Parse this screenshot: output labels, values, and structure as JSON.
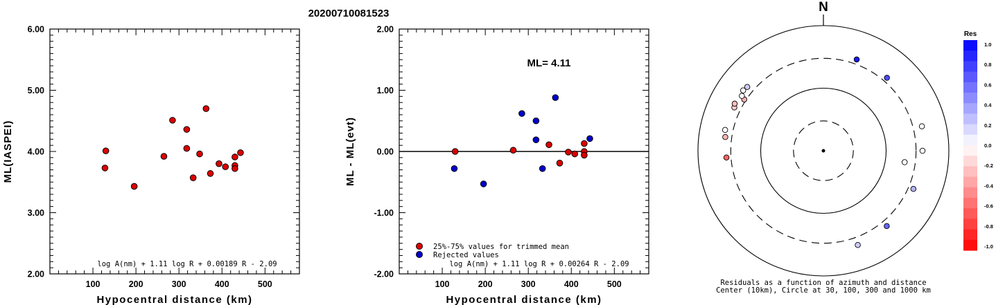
{
  "title": "20200710081523",
  "chart_data": [
    {
      "type": "scatter",
      "ylabel": "ML(IASPEI)",
      "xlabel": "Hypocentral distance (km)",
      "xlim": [
        0,
        580
      ],
      "ylim": [
        2.0,
        6.0
      ],
      "xticks": [
        100,
        200,
        300,
        400,
        500
      ],
      "yticks": [
        2.0,
        3.0,
        4.0,
        5.0,
        6.0
      ],
      "ytick_labels": [
        "2.00",
        "3.00",
        "4.00",
        "5.00",
        "6.00"
      ],
      "formula": "log A(nm) + 1.11 log R + 0.00189 R - 2.09",
      "marker_color": "#dd0000",
      "points": [
        {
          "x": 130,
          "y": 4.01
        },
        {
          "x": 128,
          "y": 3.73
        },
        {
          "x": 196,
          "y": 3.43
        },
        {
          "x": 265,
          "y": 3.92
        },
        {
          "x": 285,
          "y": 4.51
        },
        {
          "x": 318,
          "y": 4.36
        },
        {
          "x": 318,
          "y": 4.05
        },
        {
          "x": 333,
          "y": 3.57
        },
        {
          "x": 348,
          "y": 3.96
        },
        {
          "x": 363,
          "y": 4.7
        },
        {
          "x": 373,
          "y": 3.64
        },
        {
          "x": 393,
          "y": 3.8
        },
        {
          "x": 408,
          "y": 3.75
        },
        {
          "x": 430,
          "y": 3.91
        },
        {
          "x": 430,
          "y": 3.77
        },
        {
          "x": 430,
          "y": 3.72
        },
        {
          "x": 443,
          "y": 3.98
        }
      ]
    },
    {
      "type": "scatter",
      "ylabel": "ML - ML(evt)",
      "xlabel": "Hypocentral distance (km)",
      "xlim": [
        0,
        580
      ],
      "ylim": [
        -2.0,
        2.0
      ],
      "xticks": [
        100,
        200,
        300,
        400,
        500
      ],
      "yticks": [
        -2.0,
        -1.0,
        0.0,
        1.0,
        2.0
      ],
      "ytick_labels": [
        "-2.00",
        "-1.00",
        "0.00",
        "1.00",
        "2.00"
      ],
      "annotation": "ML= 4.11",
      "formula": "log A(nm) + 1.11 log R + 0.00264 R - 2.09",
      "legend": [
        {
          "label": "25%-75% values for trimmed mean",
          "color": "#dd0000"
        },
        {
          "label": "Rejected values",
          "color": "#0000cc"
        }
      ],
      "series": [
        {
          "color": "#dd0000",
          "points": [
            {
              "x": 130,
              "y": 0.0
            },
            {
              "x": 265,
              "y": 0.02
            },
            {
              "x": 348,
              "y": 0.11
            },
            {
              "x": 373,
              "y": -0.19
            },
            {
              "x": 393,
              "y": -0.01
            },
            {
              "x": 408,
              "y": -0.04
            },
            {
              "x": 430,
              "y": 0.13
            },
            {
              "x": 430,
              "y": 0.0
            },
            {
              "x": 430,
              "y": -0.06
            }
          ]
        },
        {
          "color": "#0000cc",
          "points": [
            {
              "x": 128,
              "y": -0.28
            },
            {
              "x": 196,
              "y": -0.53
            },
            {
              "x": 285,
              "y": 0.62
            },
            {
              "x": 318,
              "y": 0.5
            },
            {
              "x": 318,
              "y": 0.19
            },
            {
              "x": 333,
              "y": -0.28
            },
            {
              "x": 363,
              "y": 0.88
            },
            {
              "x": 443,
              "y": 0.21
            }
          ]
        }
      ]
    },
    {
      "type": "scatter",
      "subtype": "polar residual map",
      "north_label": "N",
      "caption_line1": "Residuals as a function of azimuth and distance",
      "caption_line2": "Center (10km), Circle at 30, 100, 300 and 1000 km",
      "rings_km": [
        30,
        100,
        300,
        1000
      ],
      "points": [
        {
          "azimuth_deg": 20,
          "distance_km": 356,
          "res": 0.9
        },
        {
          "azimuth_deg": 41,
          "distance_km": 350,
          "res": 0.7
        },
        {
          "azimuth_deg": 76,
          "distance_km": 415,
          "res": 0.0
        },
        {
          "azimuth_deg": 90,
          "distance_km": 380,
          "res": 0.0
        },
        {
          "azimuth_deg": 98,
          "distance_km": 203,
          "res": 0.0
        },
        {
          "azimuth_deg": 113,
          "distance_km": 362,
          "res": 0.3
        },
        {
          "azimuth_deg": 140,
          "distance_km": 372,
          "res": 0.6
        },
        {
          "azimuth_deg": 160,
          "distance_km": 400,
          "res": 0.2
        },
        {
          "azimuth_deg": 303,
          "distance_km": 320,
          "res": -0.3
        },
        {
          "azimuth_deg": 304,
          "distance_km": 370,
          "res": 0.0
        },
        {
          "azimuth_deg": 296,
          "distance_km": 380,
          "res": -0.2
        },
        {
          "azimuth_deg": 298,
          "distance_km": 400,
          "res": -0.25
        },
        {
          "azimuth_deg": 307,
          "distance_km": 400,
          "res": 0.0
        },
        {
          "azimuth_deg": 310,
          "distance_km": 385,
          "res": 0.2
        },
        {
          "azimuth_deg": 282,
          "distance_km": 400,
          "res": 0.0
        },
        {
          "azimuth_deg": 278,
          "distance_km": 380,
          "res": -0.3
        },
        {
          "azimuth_deg": 266,
          "distance_km": 355,
          "res": -0.6
        }
      ],
      "colorbar": {
        "title": "Res",
        "range": [
          -1.0,
          1.0
        ],
        "tick_labels": [
          "1.0",
          "0.8",
          "0.6",
          "0.4",
          "0.2",
          "0.0",
          "-0.2",
          "-0.4",
          "-0.6",
          "-0.8",
          "-1.0"
        ],
        "positive_color": "#0000ff",
        "negative_color": "#ff0000"
      }
    }
  ]
}
